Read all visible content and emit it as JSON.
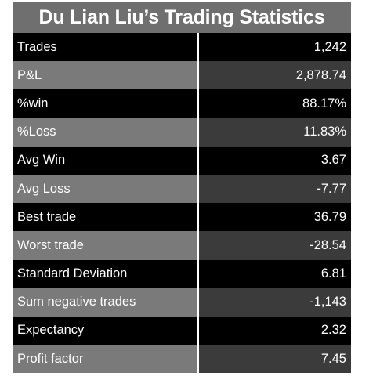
{
  "title": "Du Lian Liu’s Trading Statistics",
  "rows": [
    {
      "label": "Trades",
      "value": "1,242"
    },
    {
      "label": "P&L",
      "value": "2,878.74"
    },
    {
      "label": "%win",
      "value": "88.17%"
    },
    {
      "label": "%Loss",
      "value": "11.83%"
    },
    {
      "label": "Avg Win",
      "value": "3.67"
    },
    {
      "label": "Avg Loss",
      "value": "-7.77"
    },
    {
      "label": "Best trade",
      "value": "36.79"
    },
    {
      "label": "Worst trade",
      "value": "-28.54"
    },
    {
      "label": "Standard Deviation",
      "value": "6.81"
    },
    {
      "label": "Sum negative trades",
      "value": "-1,143"
    },
    {
      "label": "Expectancy",
      "value": "2.32"
    },
    {
      "label": "Profit factor",
      "value": "7.45"
    }
  ],
  "colors": {
    "title_background": "#6f6f6f",
    "dark_row": "#000000",
    "light_row_label": "#7a7a7a",
    "light_row_value": "#3b3b3b",
    "text": "#ffffff"
  }
}
